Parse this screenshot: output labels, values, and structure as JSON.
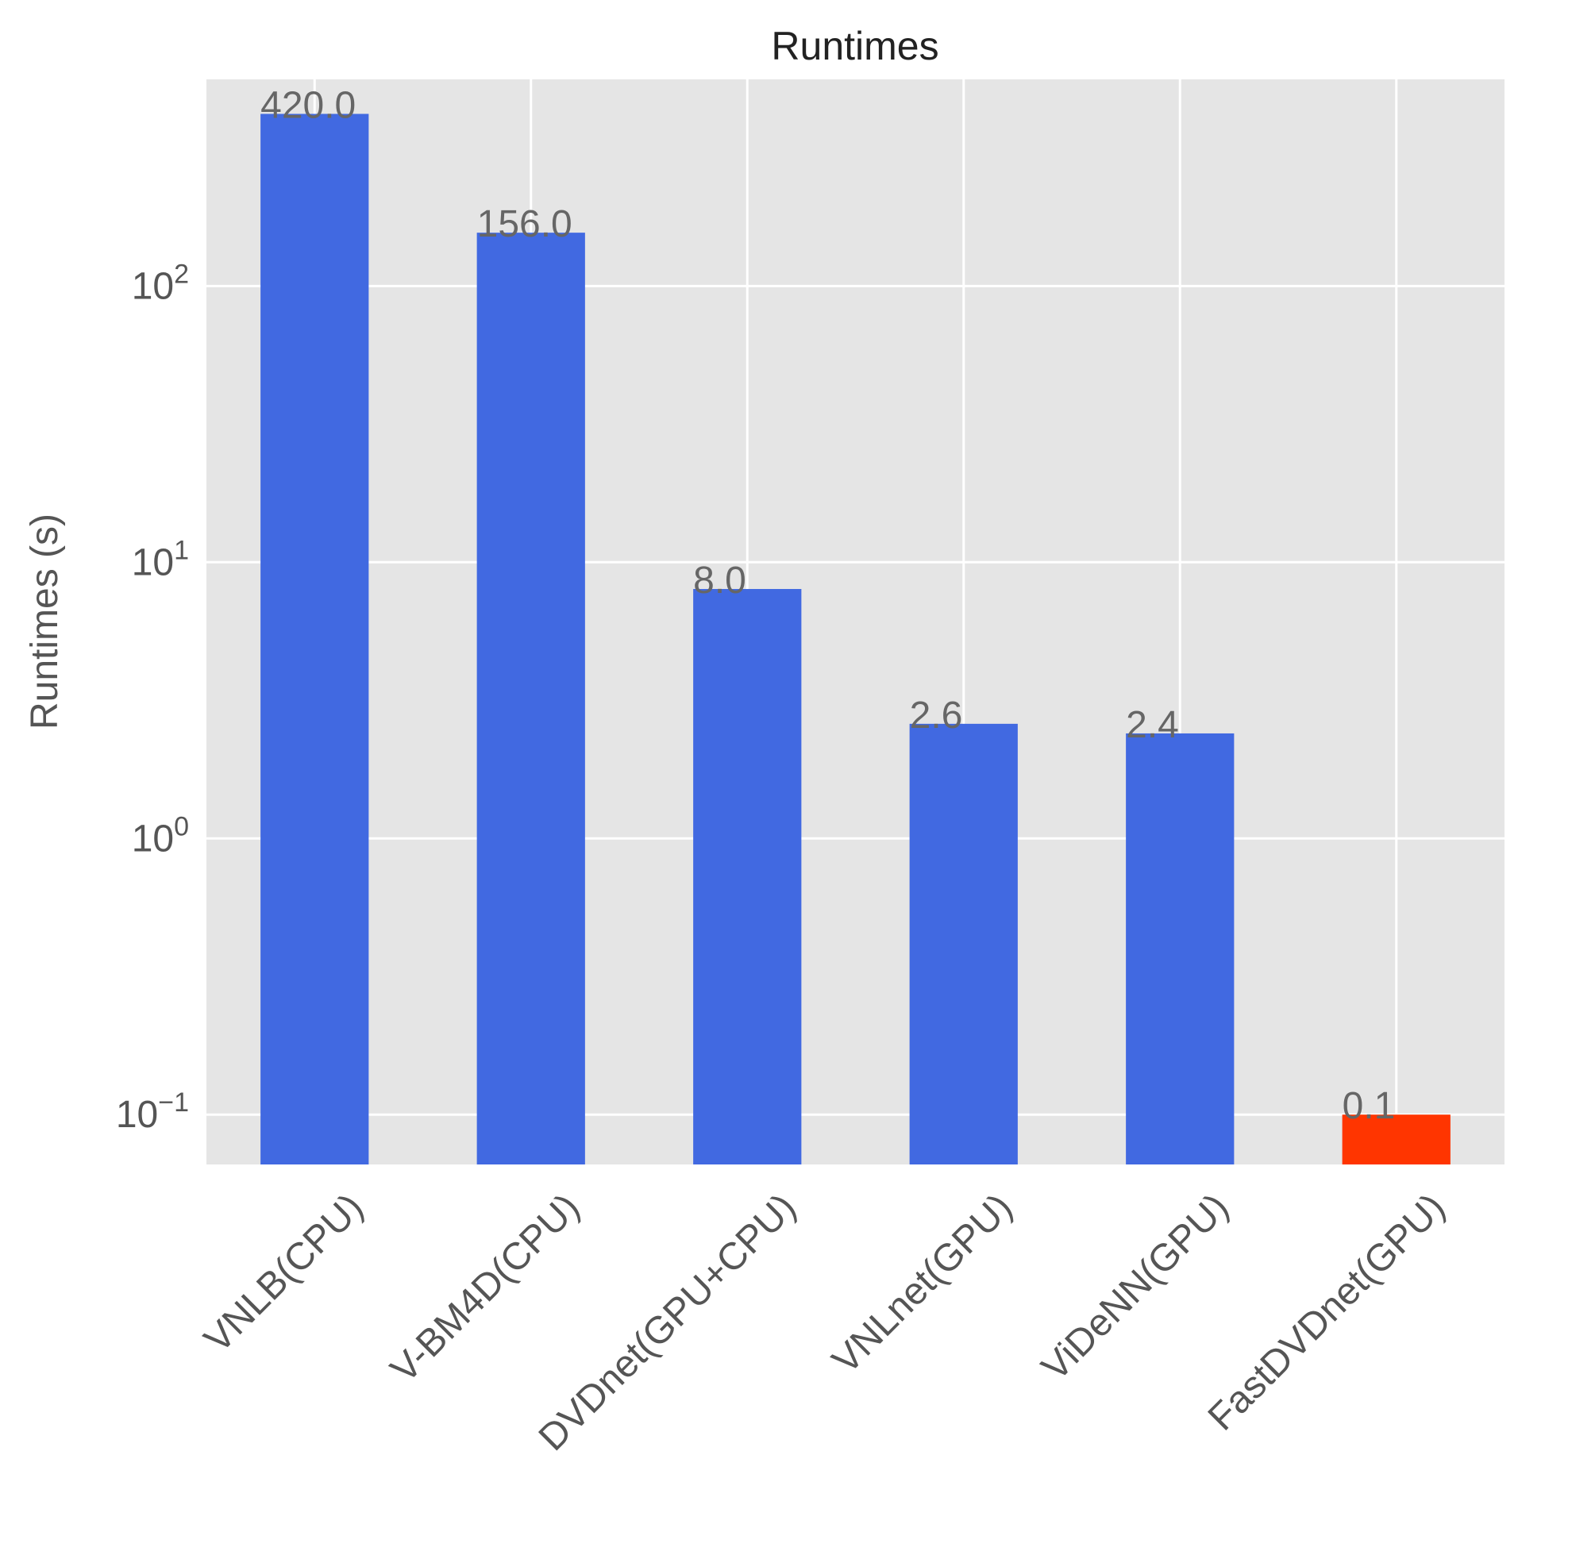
{
  "chart_data": {
    "type": "bar",
    "title": "Runtimes",
    "xlabel": "",
    "ylabel": "Runtimes (s)",
    "yscale": "log",
    "ylim": [
      0.066,
      560
    ],
    "grid": true,
    "categories": [
      "VNLB(CPU)",
      "V-BM4D(CPU)",
      "DVDnet(GPU+CPU)",
      "VNLnet(GPU)",
      "ViDeNN(GPU)",
      "FastDVDnet(GPU)"
    ],
    "values": [
      420.0,
      156.0,
      8.0,
      2.6,
      2.4,
      0.1
    ],
    "value_labels": [
      "420.0",
      "156.0",
      "8.0",
      "2.6",
      "2.4",
      "0.1"
    ],
    "bar_colors": [
      "#4169e1",
      "#4169e1",
      "#4169e1",
      "#4169e1",
      "#4169e1",
      "#ff3500"
    ],
    "ytick_bases": [
      "10",
      "10",
      "10",
      "10"
    ],
    "ytick_exponents": [
      "2",
      "1",
      "0",
      "−1"
    ],
    "ytick_values": [
      100,
      10,
      1,
      0.1
    ],
    "background_color": "#e5e5e5",
    "grid_color": "#ffffff"
  }
}
